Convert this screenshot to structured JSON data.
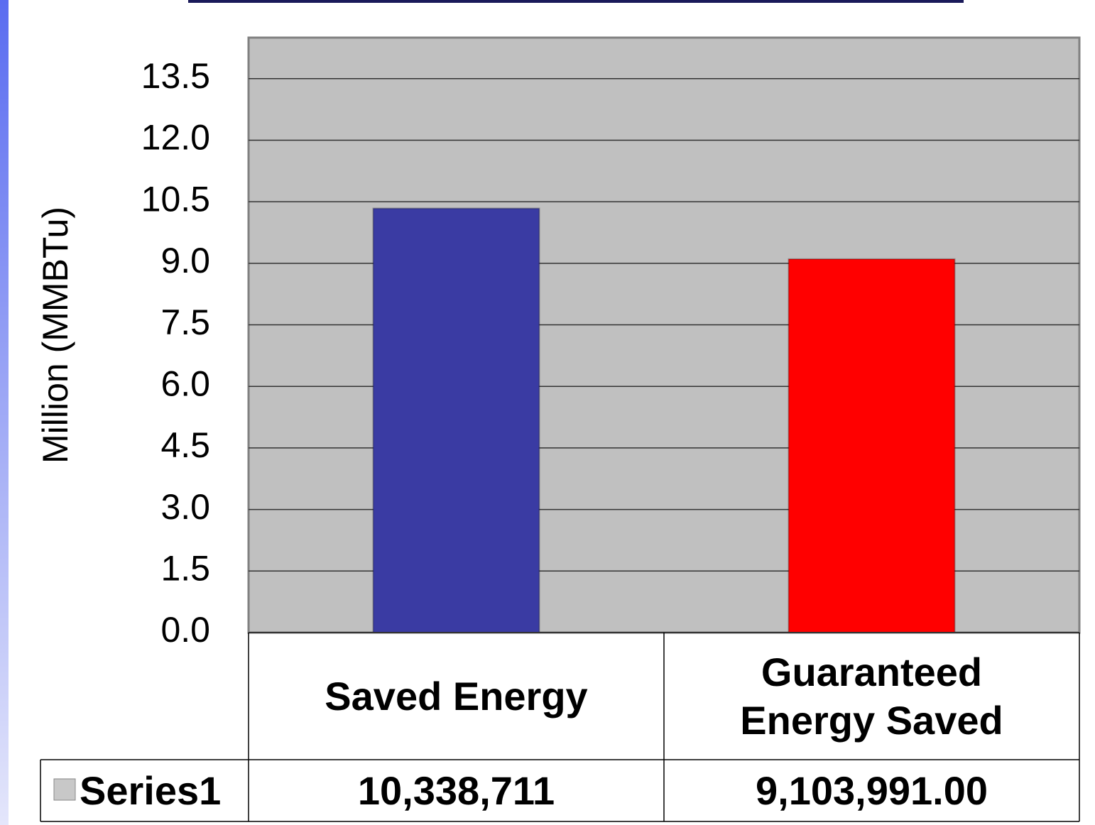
{
  "chart_data": {
    "type": "bar",
    "y_label": "Million (MMBTu)",
    "categories": [
      "Saved Energy",
      "Guaranteed Energy Saved"
    ],
    "series": [
      {
        "name": "Series1",
        "values": [
          10.338711,
          9.103991
        ],
        "value_labels": [
          "10,338,711",
          "9,103,991.00"
        ],
        "colors": [
          "#3a3ba3",
          "#ff0000"
        ]
      }
    ],
    "ylim": [
      0,
      14.5
    ],
    "yticks": [
      {
        "value": 0,
        "label": "0.0"
      },
      1.5,
      {
        "value": 3,
        "label": "3.0"
      },
      4.5,
      {
        "value": 6,
        "label": "6.0"
      },
      7.5,
      {
        "value": 9,
        "label": "9.0"
      },
      10.5,
      {
        "value": 12,
        "label": "12.0"
      },
      13.5
    ],
    "grid": true,
    "plot_background": "#c0c0c0"
  }
}
